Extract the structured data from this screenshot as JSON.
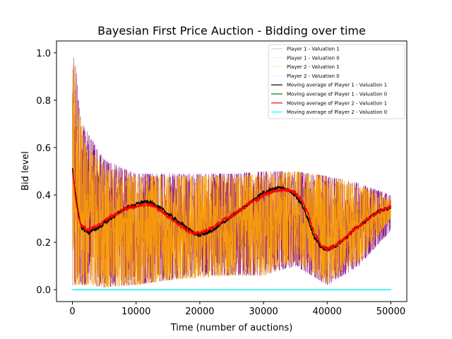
{
  "chart_data": {
    "type": "line",
    "title": "Bayesian First Price Auction - Bidding over time",
    "xlabel": "Time (number of auctions)",
    "ylabel": "Bid level",
    "xlim": [
      -2500,
      52500
    ],
    "ylim": [
      -0.05,
      1.05
    ],
    "xticks": [
      0,
      10000,
      20000,
      30000,
      40000,
      50000
    ],
    "yticks": [
      0.0,
      0.2,
      0.4,
      0.6,
      0.8,
      1.0
    ],
    "xtick_labels": [
      "0",
      "10000",
      "20000",
      "30000",
      "40000",
      "50000"
    ],
    "ytick_labels": [
      "0.0",
      "0.2",
      "0.4",
      "0.6",
      "0.8",
      "1.0"
    ],
    "legend_position": "upper right",
    "series": [
      {
        "name": "Player 1 - Valuation 1",
        "color": "#800080",
        "kind": "raw",
        "x": [
          0,
          500,
          1000,
          2000,
          5000,
          10000,
          15000,
          20000,
          25000,
          30000,
          35000,
          40000,
          45000,
          50000
        ],
        "upper": [
          1.0,
          0.95,
          0.8,
          0.68,
          0.55,
          0.49,
          0.49,
          0.49,
          0.49,
          0.5,
          0.5,
          0.48,
          0.45,
          0.4
        ],
        "lower": [
          0.0,
          0.02,
          0.02,
          0.02,
          0.01,
          0.02,
          0.04,
          0.06,
          0.06,
          0.06,
          0.1,
          0.02,
          0.1,
          0.25
        ]
      },
      {
        "name": "Player 1 - Valuation 0",
        "color": "#ffa500",
        "kind": "raw",
        "x": [
          0,
          50000
        ],
        "values": [
          0.0,
          0.0
        ]
      },
      {
        "name": "Player 2 - Valuation 1",
        "color": "#ffa500",
        "kind": "raw",
        "x": [
          0,
          500,
          1000,
          2000,
          5000,
          10000,
          15000,
          20000,
          25000,
          30000,
          35000,
          40000,
          45000,
          50000
        ],
        "upper": [
          1.0,
          0.9,
          0.75,
          0.62,
          0.52,
          0.48,
          0.48,
          0.48,
          0.48,
          0.49,
          0.5,
          0.48,
          0.44,
          0.38
        ],
        "lower": [
          0.0,
          0.02,
          0.02,
          0.02,
          0.01,
          0.02,
          0.04,
          0.05,
          0.06,
          0.06,
          0.12,
          0.03,
          0.12,
          0.3
        ]
      },
      {
        "name": "Player 2 - Valuation 0",
        "color": "#add8e6",
        "kind": "raw",
        "x": [
          0,
          50000
        ],
        "values": [
          0.0,
          0.0
        ]
      },
      {
        "name": "Moving average of Player 1 - Valuation 1",
        "color": "#000000",
        "kind": "ma",
        "x": [
          0,
          500,
          1000,
          1500,
          2000,
          2500,
          3000,
          4000,
          5000,
          6000,
          7000,
          8000,
          9000,
          10000,
          11000,
          12000,
          13000,
          14000,
          15000,
          16000,
          17000,
          18000,
          19000,
          20000,
          21000,
          22000,
          23000,
          24000,
          25000,
          26000,
          27000,
          28000,
          29000,
          30000,
          31000,
          32000,
          33000,
          34000,
          35000,
          36000,
          37000,
          38000,
          39000,
          40000,
          41000,
          42000,
          43000,
          44000,
          45000,
          46000,
          47000,
          48000,
          49000,
          50000
        ],
        "values": [
          0.51,
          0.4,
          0.31,
          0.26,
          0.25,
          0.24,
          0.25,
          0.26,
          0.28,
          0.3,
          0.32,
          0.34,
          0.35,
          0.36,
          0.37,
          0.37,
          0.36,
          0.34,
          0.32,
          0.3,
          0.28,
          0.26,
          0.24,
          0.23,
          0.24,
          0.25,
          0.27,
          0.29,
          0.31,
          0.33,
          0.35,
          0.37,
          0.39,
          0.41,
          0.42,
          0.43,
          0.43,
          0.42,
          0.4,
          0.36,
          0.3,
          0.22,
          0.18,
          0.17,
          0.18,
          0.2,
          0.22,
          0.25,
          0.27,
          0.29,
          0.31,
          0.33,
          0.34,
          0.35
        ]
      },
      {
        "name": "Moving average of Player 1 - Valuation 0",
        "color": "#008000",
        "kind": "ma",
        "x": [
          0,
          50000
        ],
        "values": [
          0.0,
          0.0
        ]
      },
      {
        "name": "Moving average of Player 2 - Valuation 1",
        "color": "#ff0000",
        "kind": "ma",
        "x": [
          0,
          500,
          1000,
          1500,
          2000,
          2500,
          3000,
          4000,
          5000,
          6000,
          7000,
          8000,
          9000,
          10000,
          11000,
          12000,
          13000,
          14000,
          15000,
          16000,
          17000,
          18000,
          19000,
          20000,
          21000,
          22000,
          23000,
          24000,
          25000,
          26000,
          27000,
          28000,
          29000,
          30000,
          31000,
          32000,
          33000,
          34000,
          35000,
          36000,
          37000,
          38000,
          39000,
          40000,
          41000,
          42000,
          43000,
          44000,
          45000,
          46000,
          47000,
          48000,
          49000,
          50000
        ],
        "values": [
          0.5,
          0.39,
          0.3,
          0.27,
          0.26,
          0.25,
          0.26,
          0.27,
          0.29,
          0.31,
          0.32,
          0.34,
          0.35,
          0.35,
          0.36,
          0.36,
          0.35,
          0.33,
          0.31,
          0.29,
          0.27,
          0.25,
          0.24,
          0.24,
          0.25,
          0.26,
          0.28,
          0.3,
          0.31,
          0.33,
          0.35,
          0.37,
          0.38,
          0.4,
          0.41,
          0.42,
          0.42,
          0.42,
          0.41,
          0.38,
          0.32,
          0.24,
          0.19,
          0.17,
          0.18,
          0.2,
          0.22,
          0.25,
          0.27,
          0.29,
          0.31,
          0.33,
          0.34,
          0.35
        ]
      },
      {
        "name": "Moving average of Player 2 - Valuation 0",
        "color": "#00ffff",
        "kind": "ma",
        "x": [
          0,
          50000
        ],
        "values": [
          0.0,
          0.0
        ]
      }
    ]
  }
}
